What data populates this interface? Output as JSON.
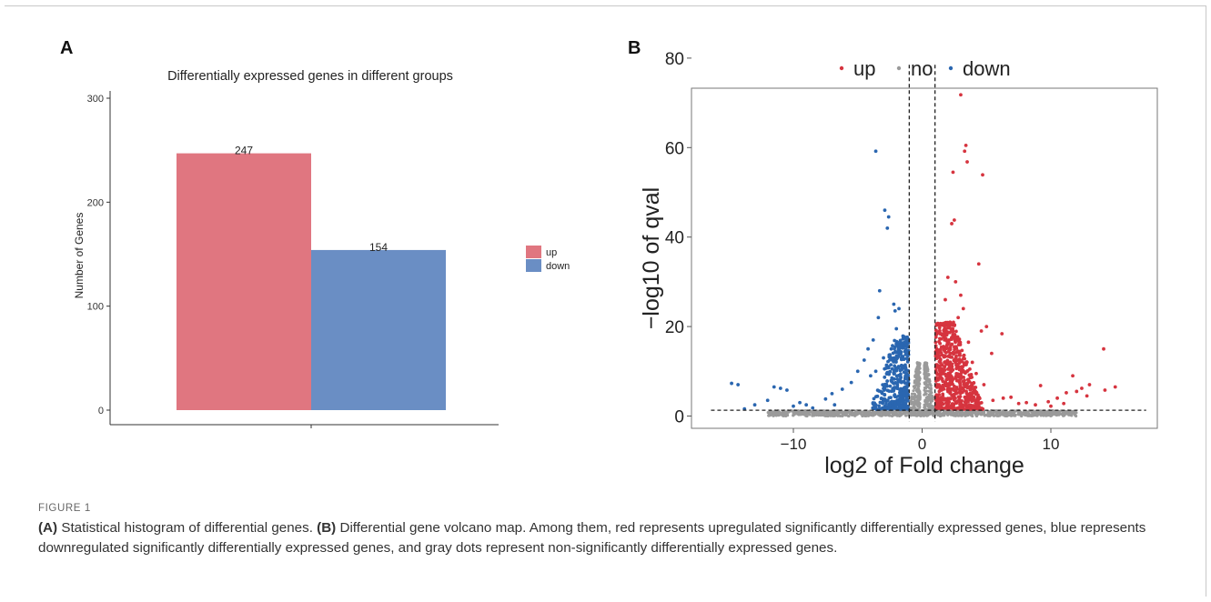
{
  "panels": {
    "a_label": "A",
    "b_label": "B"
  },
  "figure_label": "FIGURE 1",
  "caption": {
    "a_tag": "(A)",
    "a_text": " Statistical histogram of differential genes. ",
    "b_tag": "(B)",
    "b_text": " Differential gene volcano map. Among them, red represents upregulated significantly differentially expressed genes, blue represents downregulated significantly differentially expressed genes, and gray dots represent non-significantly differentially expressed genes."
  },
  "colors": {
    "up": "#e07680",
    "down": "#6a8ec4",
    "up_point": "#d6343f",
    "down_point": "#2a66b0",
    "no_point": "#9a9a9a"
  },
  "chart_data": [
    {
      "type": "bar",
      "title": "Differentially expressed genes in different groups",
      "xlabel": "",
      "ylabel": "Number of Genes",
      "ylim": [
        0,
        300
      ],
      "yticks": [
        0,
        100,
        200,
        300
      ],
      "categories": [
        "up",
        "down"
      ],
      "values": [
        247,
        154
      ],
      "data_labels": [
        "247",
        "154"
      ],
      "legend": {
        "position": "right",
        "entries": [
          "up",
          "down"
        ]
      },
      "grid": false
    },
    {
      "type": "scatter",
      "title": "",
      "xlabel": "log2 of Fold change",
      "ylabel": "−log10 of qval",
      "xlim": [
        -16.5,
        17.5
      ],
      "ylim": [
        -1.5,
        82
      ],
      "xticks": [
        -10,
        0,
        10
      ],
      "xtick_labels": [
        "−10",
        "0",
        "10"
      ],
      "yticks": [
        0,
        20,
        40,
        60,
        80
      ],
      "legend": {
        "position": "top",
        "entries": [
          "up",
          "no",
          "down"
        ]
      },
      "thresholds": {
        "vertical_x": [
          -1,
          1
        ],
        "horizontal_y": 1.3
      },
      "grid": false,
      "series": [
        {
          "name": "up",
          "points": [
            [
              3.0,
              71.8
            ],
            [
              3.4,
              60.5
            ],
            [
              3.3,
              59.2
            ],
            [
              3.5,
              56.8
            ],
            [
              2.4,
              54.5
            ],
            [
              4.7,
              53.9
            ],
            [
              2.5,
              43.8
            ],
            [
              2.3,
              43.0
            ],
            [
              4.4,
              34.0
            ],
            [
              2.0,
              31.0
            ],
            [
              2.6,
              30.0
            ],
            [
              3.0,
              27.0
            ],
            [
              3.2,
              24.0
            ],
            [
              1.8,
              26.0
            ],
            [
              5.0,
              20.0
            ],
            [
              4.6,
              19.0
            ],
            [
              6.2,
              18.4
            ],
            [
              2.1,
              17.0
            ],
            [
              3.6,
              16.5
            ],
            [
              5.4,
              14.0
            ],
            [
              14.1,
              15.0
            ],
            [
              15.0,
              6.5
            ],
            [
              13.0,
              7.0
            ],
            [
              12.4,
              6.2
            ],
            [
              11.7,
              9.0
            ],
            [
              9.2,
              6.8
            ],
            [
              8.1,
              3.0
            ],
            [
              6.9,
              4.2
            ],
            [
              6.3,
              4.0
            ],
            [
              5.5,
              3.5
            ],
            [
              10.5,
              4.0
            ],
            [
              11.2,
              5.2
            ],
            [
              12.0,
              5.5
            ],
            [
              12.8,
              4.5
            ],
            [
              14.2,
              5.8
            ],
            [
              9.8,
              3.2
            ],
            [
              8.8,
              2.5
            ],
            [
              7.5,
              2.8
            ],
            [
              10.0,
              2.2
            ],
            [
              11.0,
              2.8
            ],
            [
              2.8,
              22.0
            ],
            [
              3.9,
              12.0
            ],
            [
              4.2,
              9.5
            ],
            [
              4.8,
              7.0
            ]
          ],
          "dense_region": {
            "x_range": [
              1.0,
              4.3
            ],
            "y_range": [
              1.5,
              21.0
            ]
          }
        },
        {
          "name": "down",
          "points": [
            [
              -3.6,
              59.2
            ],
            [
              -2.9,
              46.0
            ],
            [
              -2.6,
              44.5
            ],
            [
              -2.7,
              42.0
            ],
            [
              -3.3,
              28.0
            ],
            [
              -3.4,
              22.0
            ],
            [
              -2.2,
              25.0
            ],
            [
              -2.1,
              23.5
            ],
            [
              -1.8,
              24.0
            ],
            [
              -3.8,
              17.0
            ],
            [
              -4.2,
              15.0
            ],
            [
              -4.5,
              12.5
            ],
            [
              -5.0,
              10.0
            ],
            [
              -5.5,
              7.5
            ],
            [
              -6.2,
              6.0
            ],
            [
              -7.0,
              5.0
            ],
            [
              -7.5,
              3.8
            ],
            [
              -6.8,
              2.5
            ],
            [
              -14.8,
              7.3
            ],
            [
              -14.3,
              7.0
            ],
            [
              -11.5,
              6.5
            ],
            [
              -11.0,
              6.2
            ],
            [
              -10.5,
              5.8
            ],
            [
              -12.0,
              3.5
            ],
            [
              -13.0,
              2.5
            ],
            [
              -9.5,
              3.0
            ],
            [
              -9.0,
              2.5
            ],
            [
              -10.0,
              2.2
            ],
            [
              -8.5,
              1.8
            ],
            [
              -13.8,
              1.6
            ],
            [
              -2.0,
              19.5
            ],
            [
              -2.4,
              15.0
            ],
            [
              -3.0,
              13.0
            ],
            [
              -3.6,
              10.0
            ],
            [
              -4.0,
              9.0
            ]
          ],
          "dense_region": {
            "x_range": [
              -4.0,
              -1.0
            ],
            "y_range": [
              1.5,
              18.0
            ]
          }
        },
        {
          "name": "no",
          "dense_region": {
            "x_range": [
              -12.0,
              12.0
            ],
            "y_range": [
              0.0,
              1.5
            ]
          }
        }
      ]
    }
  ]
}
